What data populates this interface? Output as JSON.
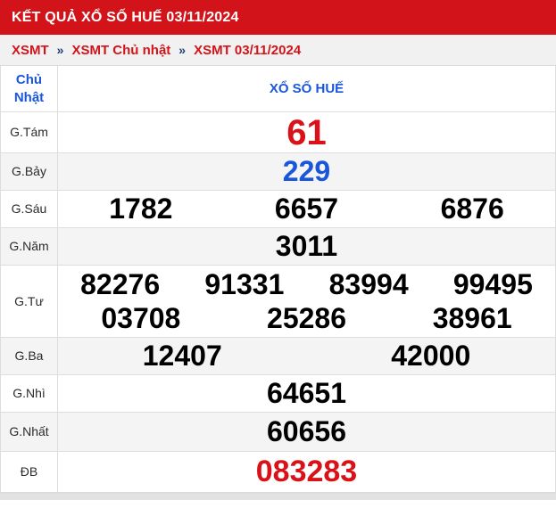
{
  "page": {
    "title": "KẾT QUẢ XỔ SỐ HUẾ 03/11/2024"
  },
  "breadcrumb": {
    "separator": "»",
    "items": [
      {
        "label": "XSMT"
      },
      {
        "label": "XSMT Chủ nhật"
      },
      {
        "label": "XSMT 03/11/2024"
      }
    ]
  },
  "table": {
    "day_header": "Chủ Nhật",
    "station_header": "XỔ SỐ HUẾ",
    "rows": [
      {
        "label": "G.Tám",
        "lines": [
          [
            "61"
          ]
        ]
      },
      {
        "label": "G.Bảy",
        "lines": [
          [
            "229"
          ]
        ]
      },
      {
        "label": "G.Sáu",
        "lines": [
          [
            "1782",
            "6657",
            "6876"
          ]
        ]
      },
      {
        "label": "G.Năm",
        "lines": [
          [
            "3011"
          ]
        ]
      },
      {
        "label": "G.Tư",
        "lines": [
          [
            "82276",
            "91331",
            "83994",
            "99495"
          ],
          [
            "03708",
            "25286",
            "38961"
          ]
        ]
      },
      {
        "label": "G.Ba",
        "lines": [
          [
            "12407",
            "42000"
          ]
        ]
      },
      {
        "label": "G.Nhì",
        "lines": [
          [
            "64651"
          ]
        ]
      },
      {
        "label": "G.Nhất",
        "lines": [
          [
            "60656"
          ]
        ]
      },
      {
        "label": "ĐB",
        "lines": [
          [
            "083283"
          ]
        ]
      }
    ]
  },
  "colors": {
    "header_red": "#d2141a",
    "breadcrumb_link_red": "#d2141a",
    "breadcrumb_separator_navy": "#1c3e6e",
    "accent_blue": "#1a56db",
    "special_number_red": "#d9121a",
    "alt_row_gray": "#f4f4f4"
  }
}
